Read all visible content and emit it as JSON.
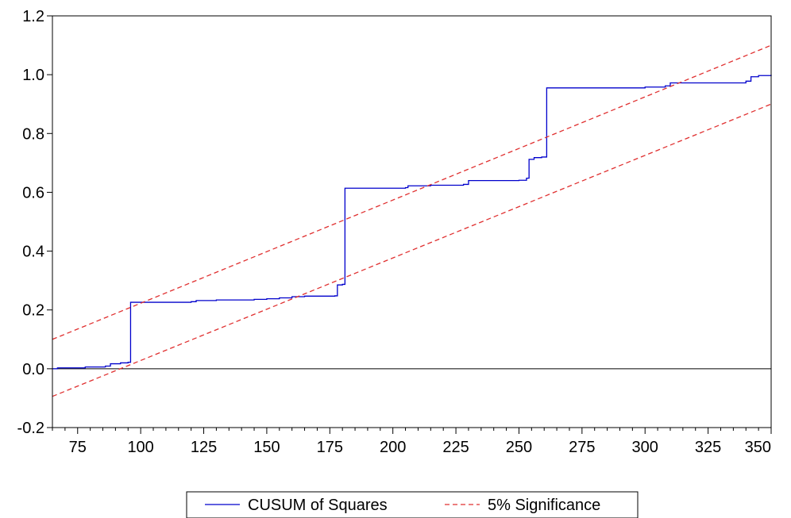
{
  "chart_data": {
    "type": "line",
    "xlim": [
      65,
      350
    ],
    "ylim": [
      -0.2,
      1.2
    ],
    "xticks": [
      75,
      100,
      125,
      150,
      175,
      200,
      225,
      250,
      275,
      300,
      325,
      350
    ],
    "xtick_labels": [
      "75",
      "100",
      "125",
      "150",
      "175",
      "200",
      "225",
      "250",
      "275",
      "300",
      "325",
      "350"
    ],
    "yticks": [
      -0.2,
      0.0,
      0.2,
      0.4,
      0.6,
      0.8,
      1.0,
      1.2
    ],
    "ytick_labels": [
      "-0.2",
      "0.0",
      "0.2",
      "0.4",
      "0.6",
      "0.8",
      "1.0",
      "1.2"
    ],
    "zero_line": 0.0,
    "grid": false,
    "legend_position": "bottom",
    "series": [
      {
        "name": "CUSUM of Squares",
        "color": "#0000cc",
        "style": "solid",
        "points": [
          [
            65,
            0.0
          ],
          [
            67,
            0.003
          ],
          [
            78,
            0.006
          ],
          [
            86,
            0.009
          ],
          [
            88,
            0.017
          ],
          [
            92,
            0.02
          ],
          [
            95,
            0.022
          ],
          [
            96,
            0.226
          ],
          [
            120,
            0.228
          ],
          [
            122,
            0.232
          ],
          [
            130,
            0.234
          ],
          [
            145,
            0.236
          ],
          [
            150,
            0.238
          ],
          [
            155,
            0.241
          ],
          [
            160,
            0.245
          ],
          [
            165,
            0.247
          ],
          [
            177,
            0.248
          ],
          [
            178,
            0.285
          ],
          [
            180,
            0.287
          ],
          [
            181,
            0.614
          ],
          [
            205,
            0.616
          ],
          [
            206,
            0.622
          ],
          [
            215,
            0.624
          ],
          [
            228,
            0.627
          ],
          [
            230,
            0.64
          ],
          [
            250,
            0.641
          ],
          [
            253,
            0.648
          ],
          [
            254,
            0.712
          ],
          [
            256,
            0.718
          ],
          [
            259,
            0.72
          ],
          [
            261,
            0.955
          ],
          [
            300,
            0.958
          ],
          [
            308,
            0.962
          ],
          [
            310,
            0.972
          ],
          [
            340,
            0.978
          ],
          [
            342,
            0.993
          ],
          [
            345,
            0.997
          ],
          [
            350,
            1.0
          ]
        ]
      },
      {
        "name": "5% Significance",
        "color": "#e03030",
        "style": "dashed",
        "points": [
          [
            65,
            0.1
          ],
          [
            350,
            1.1
          ]
        ]
      },
      {
        "name": "5% Significance lower",
        "color": "#e03030",
        "style": "dashed",
        "points": [
          [
            65,
            -0.094
          ],
          [
            350,
            0.9
          ]
        ]
      }
    ],
    "legend": [
      "CUSUM of Squares",
      "5% Significance"
    ]
  }
}
